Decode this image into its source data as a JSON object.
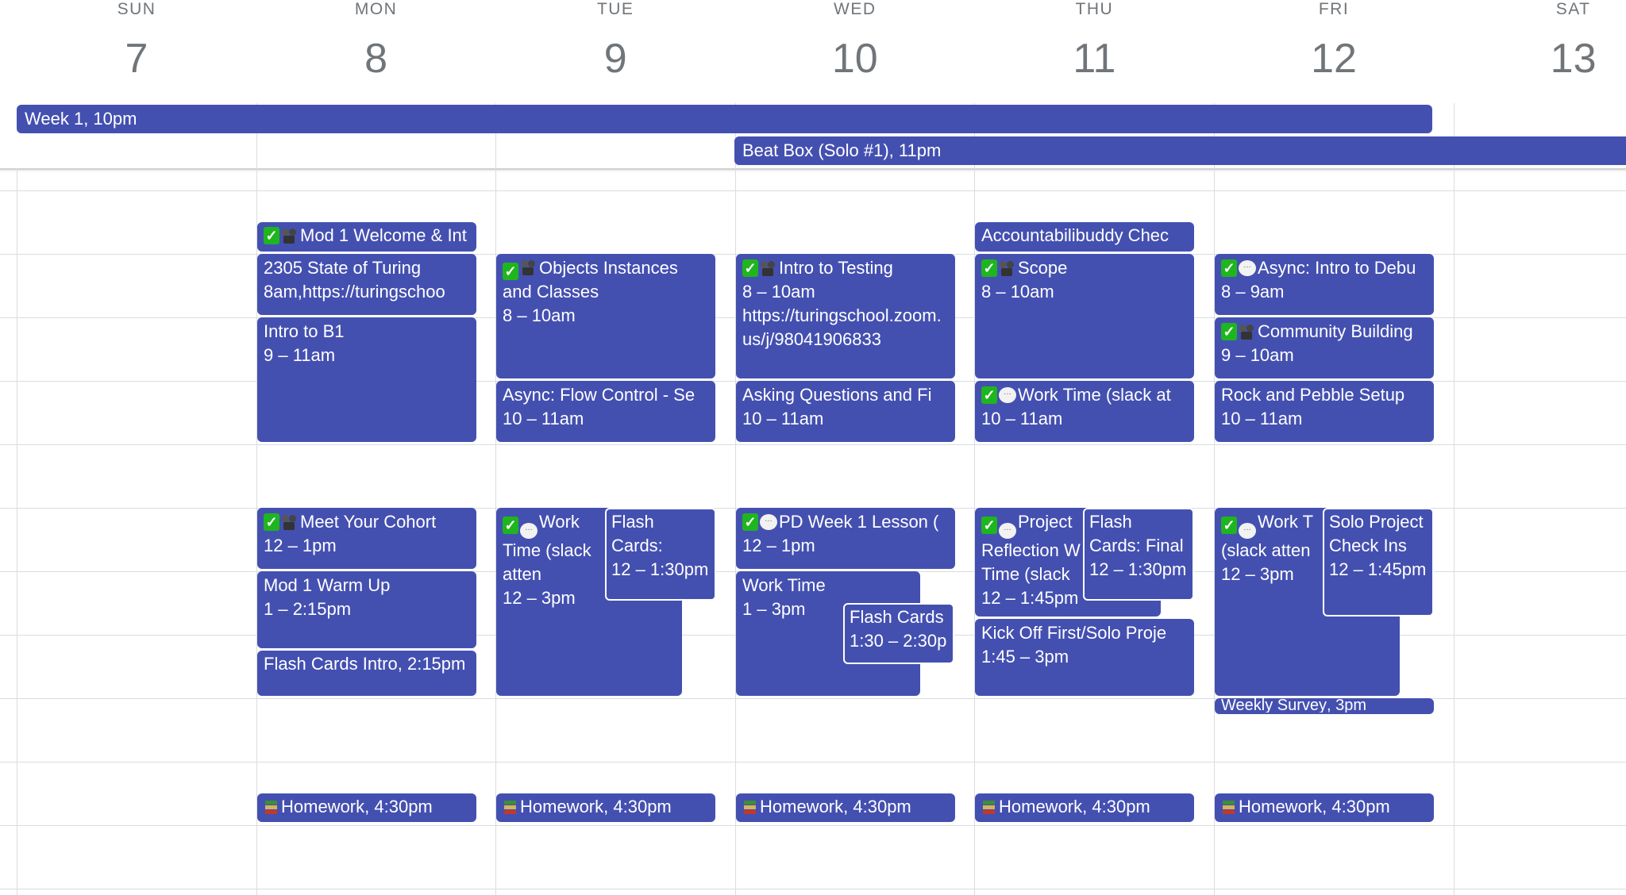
{
  "days": [
    {
      "name": "SUN",
      "num": "7"
    },
    {
      "name": "MON",
      "num": "8"
    },
    {
      "name": "TUE",
      "num": "9"
    },
    {
      "name": "WED",
      "num": "10"
    },
    {
      "name": "THU",
      "num": "11"
    },
    {
      "name": "FRI",
      "num": "12"
    },
    {
      "name": "SAT",
      "num": "13"
    }
  ],
  "all_day": [
    {
      "title": "Week 1",
      "time": "10pm",
      "start_day": 0,
      "end_day": 5
    },
    {
      "title": "Beat Box (Solo #1)",
      "time": "11pm",
      "start_day": 3,
      "end_day": 6
    }
  ],
  "event_color": "#4450b0",
  "events": [
    {
      "day": 1,
      "start": 7.5,
      "end": 8,
      "title": "Mod 1 Welcome & Int",
      "icons": [
        "check-icon",
        "camera-icon"
      ],
      "inline": true
    },
    {
      "day": 1,
      "start": 8,
      "end": 9,
      "title": "2305 State of Turing",
      "time": "8am",
      "location": "https://turingschoo",
      "inline_loc": true
    },
    {
      "day": 1,
      "start": 9,
      "end": 11,
      "title": "Intro to B1",
      "time": "9 – 11am"
    },
    {
      "day": 1,
      "start": 12,
      "end": 13,
      "title": "Meet Your Cohort",
      "time": "12 – 1pm",
      "icons": [
        "check-icon",
        "camera-icon"
      ]
    },
    {
      "day": 1,
      "start": 13,
      "end": 14.25,
      "title": "Mod 1 Warm Up",
      "time": "1 – 2:15pm"
    },
    {
      "day": 1,
      "start": 14.25,
      "end": 15,
      "title": "Flash Cards Intro",
      "time": "2:15pm",
      "inline": true
    },
    {
      "day": 1,
      "start": 16.5,
      "end": 17,
      "title": "Homework",
      "time": "4:30pm",
      "icons": [
        "books-icon"
      ],
      "inline": true
    },
    {
      "day": 2,
      "start": 8,
      "end": 10,
      "title": "Objects Instances and Classes",
      "time": "8 – 10am",
      "icons": [
        "check-icon",
        "camera-icon"
      ]
    },
    {
      "day": 2,
      "start": 10,
      "end": 11,
      "title": "Async: Flow Control - Se",
      "time": "10 – 11am"
    },
    {
      "day": 2,
      "start": 12,
      "end": 15,
      "title": "Work Time (slack atten",
      "time": "12 – 3pm",
      "icons": [
        "check-icon",
        "speech-bubble-icon"
      ]
    },
    {
      "day": 2,
      "start": 12,
      "end": 13.5,
      "title": "Flash Cards:",
      "time": "12 – 1:30pm"
    },
    {
      "day": 2,
      "start": 16.5,
      "end": 17,
      "title": "Homework",
      "time": "4:30pm",
      "icons": [
        "books-icon"
      ],
      "inline": true
    },
    {
      "day": 3,
      "start": 8,
      "end": 10,
      "title": "Intro to Testing",
      "time": "8 – 10am",
      "location": "https://turingschool.zoom.us/j/98041906833",
      "icons": [
        "check-icon",
        "camera-icon"
      ]
    },
    {
      "day": 3,
      "start": 10,
      "end": 11,
      "title": "Asking Questions and Fi",
      "time": "10 – 11am"
    },
    {
      "day": 3,
      "start": 12,
      "end": 13,
      "title": "PD Week 1 Lesson (",
      "time": "12 – 1pm",
      "icons": [
        "check-icon",
        "speech-bubble-icon"
      ]
    },
    {
      "day": 3,
      "start": 13,
      "end": 15,
      "title": "Work Time",
      "time": "1 – 3pm"
    },
    {
      "day": 3,
      "start": 13.5,
      "end": 14.5,
      "title": "Flash Cards",
      "time": "1:30 – 2:30p"
    },
    {
      "day": 3,
      "start": 16.5,
      "end": 17,
      "title": "Homework",
      "time": "4:30pm",
      "icons": [
        "books-icon"
      ],
      "inline": true
    },
    {
      "day": 4,
      "start": 7.5,
      "end": 8,
      "title": "Accountabilibuddy Chec",
      "inline": true
    },
    {
      "day": 4,
      "start": 8,
      "end": 10,
      "title": "Scope",
      "time": "8 – 10am",
      "icons": [
        "check-icon",
        "camera-icon"
      ]
    },
    {
      "day": 4,
      "start": 10,
      "end": 11,
      "title": "Work Time (slack at",
      "time": "10 – 11am",
      "icons": [
        "check-icon",
        "speech-bubble-icon"
      ]
    },
    {
      "day": 4,
      "start": 12,
      "end": 13.75,
      "title": "Project Reflection W Time (slack",
      "time": "12 – 1:45pm",
      "icons": [
        "check-icon",
        "speech-bubble-icon"
      ]
    },
    {
      "day": 4,
      "start": 12,
      "end": 13.5,
      "title": "Flash Cards: Final",
      "time": "12 – 1:30pm"
    },
    {
      "day": 4,
      "start": 13.75,
      "end": 15,
      "title": "Kick Off First/Solo Proje",
      "time": "1:45 – 3pm"
    },
    {
      "day": 4,
      "start": 16.5,
      "end": 17,
      "title": "Homework",
      "time": "4:30pm",
      "icons": [
        "books-icon"
      ],
      "inline": true
    },
    {
      "day": 5,
      "start": 8,
      "end": 9,
      "title": "Async: Intro to Debu",
      "time": "8 – 9am",
      "icons": [
        "check-icon",
        "speech-bubble-icon"
      ]
    },
    {
      "day": 5,
      "start": 9,
      "end": 10,
      "title": "Community Building",
      "time": "9 – 10am",
      "icons": [
        "check-icon",
        "camera-icon"
      ]
    },
    {
      "day": 5,
      "start": 10,
      "end": 11,
      "title": "Rock and Pebble Setup",
      "time": "10 – 11am"
    },
    {
      "day": 5,
      "start": 12,
      "end": 15,
      "title": "Work T (slack atten",
      "time": "12 – 3pm",
      "icons": [
        "check-icon",
        "speech-bubble-icon"
      ]
    },
    {
      "day": 5,
      "start": 12,
      "end": 13.75,
      "title": "Solo Project Check Ins",
      "time": "12 – 1:45pm"
    },
    {
      "day": 5,
      "start": 15,
      "end": 15.25,
      "title": "Weekly Survey",
      "time": "3pm",
      "inline": true
    },
    {
      "day": 5,
      "start": 16.5,
      "end": 17,
      "title": "Homework",
      "time": "4:30pm",
      "icons": [
        "books-icon"
      ],
      "inline": true
    }
  ]
}
